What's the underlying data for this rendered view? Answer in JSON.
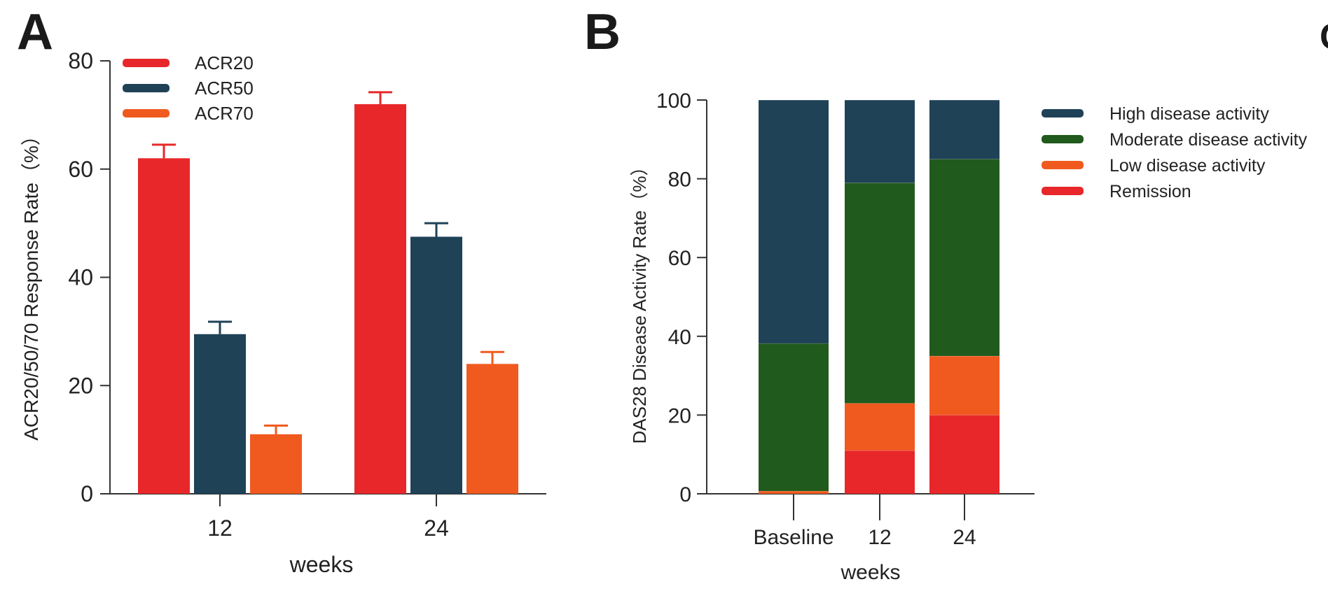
{
  "panels": {
    "a": {
      "letter": "A"
    },
    "b": {
      "letter": "B"
    },
    "c": {
      "letter": "C"
    }
  },
  "colors": {
    "ACR20": "#e8272a",
    "ACR50": "#1f4257",
    "ACR70": "#f05a1f",
    "high": "#1f4257",
    "moderate": "#215a1d",
    "low": "#f05a1f",
    "remission": "#e8272a"
  },
  "chart_data": [
    {
      "type": "bar",
      "title": "",
      "xlabel": "weeks",
      "ylabel": "ACR20/50/70 Response Rate（%）",
      "ylim": [
        0,
        80
      ],
      "yticks": [
        "0",
        "20",
        "40",
        "60",
        "80"
      ],
      "categories": [
        "12",
        "24"
      ],
      "series": [
        {
          "name": "ACR20",
          "values": [
            62,
            72
          ],
          "errors": [
            2.5,
            2.2
          ]
        },
        {
          "name": "ACR50",
          "values": [
            29.5,
            47.5
          ],
          "errors": [
            2.3,
            2.5
          ]
        },
        {
          "name": "ACR70",
          "values": [
            11,
            24
          ],
          "errors": [
            1.6,
            2.2
          ]
        }
      ],
      "legend": "top-left",
      "grid": false
    },
    {
      "type": "bar",
      "stacked": true,
      "title": "",
      "xlabel": "weeks",
      "ylabel": "DAS28 Disease Activity Rate（%）",
      "ylim": [
        0,
        100
      ],
      "yticks": [
        "0",
        "20",
        "40",
        "60",
        "80",
        "100"
      ],
      "categories": [
        "Baseline",
        "12",
        "24"
      ],
      "series": [
        {
          "name": "Remission",
          "values": [
            0,
            11,
            20
          ]
        },
        {
          "name": "Low disease activity",
          "values": [
            0.7,
            12,
            15
          ]
        },
        {
          "name": "Moderate disease activity",
          "values": [
            37.5,
            56,
            50
          ]
        },
        {
          "name": "High disease activity",
          "values": [
            61.8,
            21,
            15
          ]
        }
      ],
      "legend_order": [
        "High disease activity",
        "Moderate disease activity",
        "Low disease activity",
        "Remission"
      ],
      "legend": "top-right",
      "grid": false
    }
  ]
}
